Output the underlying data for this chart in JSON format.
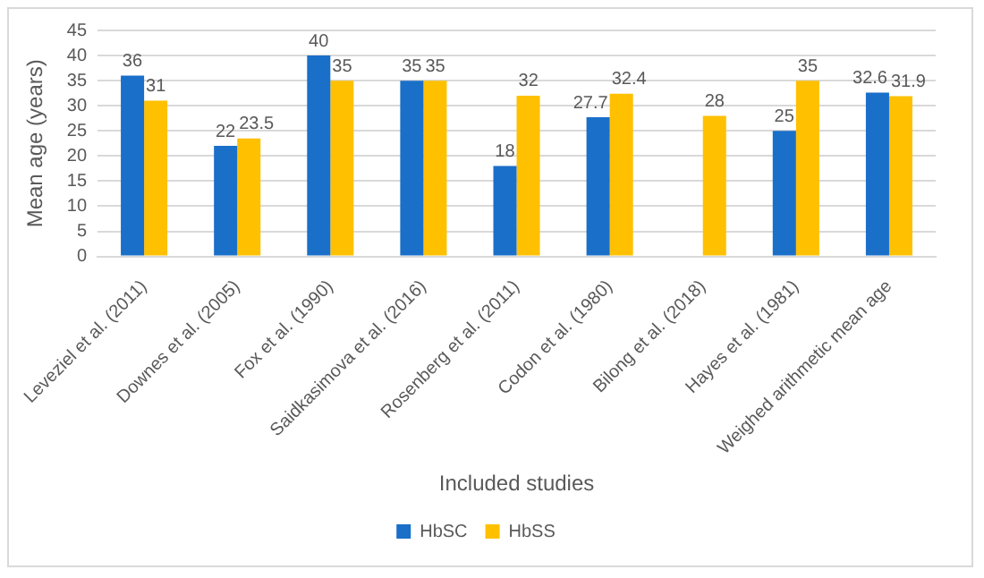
{
  "chart_data": {
    "type": "bar",
    "xlabel": "Included studies",
    "ylabel": "Mean age (years)",
    "categories": [
      "Leveziel et al. (2011)",
      "Downes et al. (2005)",
      "Fox et al. (1990)",
      "Saidkasimova et al. (2016)",
      "Rosenberg et al. (2011)",
      "Codon et al. (1980)",
      "Bilong et al. (2018)",
      "Hayes et al. (1981)",
      "Weighed arithmetic mean age"
    ],
    "series": [
      {
        "name": "HbSC",
        "color": "#1a6fc9",
        "values": [
          36,
          22,
          40,
          35,
          18,
          27.7,
          null,
          25,
          32.6
        ]
      },
      {
        "name": "HbSS",
        "color": "#ffc000",
        "values": [
          31,
          23.5,
          35,
          35,
          32,
          32.4,
          28,
          35,
          31.9
        ]
      }
    ],
    "ylim": [
      0,
      45
    ],
    "yticks": [
      0,
      5,
      10,
      15,
      20,
      25,
      30,
      35,
      40,
      45
    ],
    "grid": "y",
    "legend": "bottom",
    "data_labels": true
  }
}
